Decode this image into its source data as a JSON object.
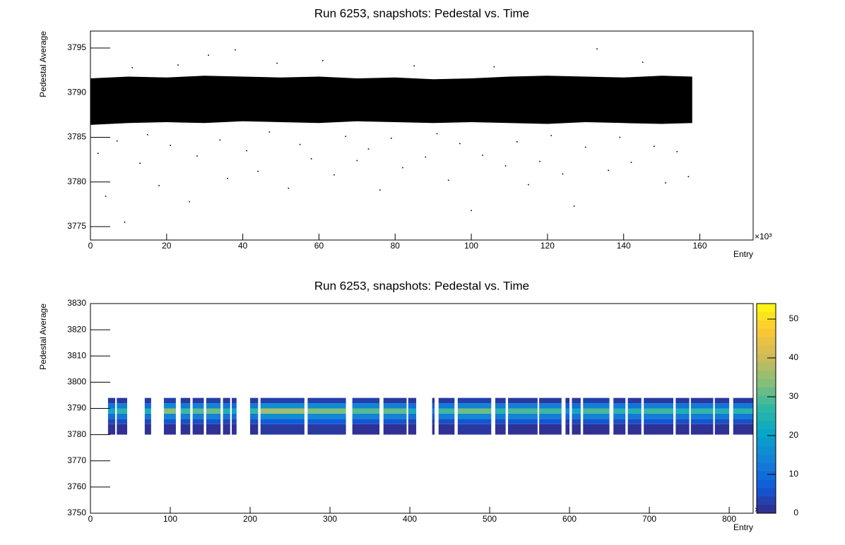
{
  "chart_data": [
    {
      "type": "scatter",
      "title": "Run 6253, snapshots: Pedestal vs. Time",
      "x_label": "Entry",
      "y_label": "Pedestal Average",
      "x_multiplier": "×10³",
      "xlim": [
        0,
        174
      ],
      "ylim": [
        3773.5,
        3796.9
      ],
      "xticks": [
        0,
        20,
        40,
        60,
        80,
        100,
        120,
        140,
        160
      ],
      "yticks": [
        3775,
        3780,
        3785,
        3790,
        3795
      ],
      "color": "#000000",
      "band": {
        "x": [
          0,
          10,
          20,
          30,
          40,
          50,
          60,
          70,
          80,
          90,
          100,
          110,
          120,
          130,
          140,
          150,
          158
        ],
        "lower": [
          3786.4,
          3786.6,
          3786.7,
          3786.6,
          3786.8,
          3786.7,
          3786.6,
          3786.8,
          3786.7,
          3786.6,
          3786.7,
          3786.6,
          3786.5,
          3786.7,
          3786.6,
          3786.5,
          3786.6
        ],
        "upper": [
          3791.6,
          3791.8,
          3791.7,
          3791.9,
          3791.8,
          3791.7,
          3791.8,
          3791.6,
          3791.7,
          3791.5,
          3791.6,
          3791.8,
          3791.9,
          3791.8,
          3791.7,
          3791.9,
          3791.8
        ]
      },
      "x": [
        2,
        4,
        7,
        9,
        11,
        13,
        15,
        18,
        21,
        23,
        26,
        28,
        31,
        34,
        36,
        38,
        41,
        44,
        47,
        49,
        52,
        55,
        58,
        61,
        64,
        67,
        70,
        73,
        76,
        79,
        82,
        85,
        88,
        91,
        94,
        97,
        100,
        103,
        106,
        109,
        112,
        115,
        118,
        121,
        124,
        127,
        130,
        133,
        136,
        139,
        142,
        145,
        148,
        151,
        154,
        157
      ],
      "y": [
        3783.2,
        3778.4,
        3784.6,
        3775.5,
        3792.8,
        3782.1,
        3785.3,
        3779.6,
        3784.1,
        3793.1,
        3777.8,
        3782.9,
        3794.2,
        3784.7,
        3780.4,
        3794.8,
        3783.5,
        3781.2,
        3785.6,
        3793.3,
        3779.3,
        3784.2,
        3782.6,
        3793.6,
        3780.8,
        3785.1,
        3782.4,
        3783.7,
        3779.1,
        3784.9,
        3781.6,
        3793.0,
        3782.8,
        3785.4,
        3780.2,
        3784.3,
        3776.8,
        3783.0,
        3792.9,
        3781.8,
        3784.5,
        3779.7,
        3782.3,
        3785.2,
        3780.9,
        3777.3,
        3783.9,
        3794.9,
        3781.3,
        3785.0,
        3782.2,
        3793.4,
        3784.0,
        3779.9,
        3783.4,
        3780.6
      ]
    },
    {
      "type": "heatmap",
      "title": "Run 6253, snapshots: Pedestal vs. Time",
      "x_label": "Entry",
      "y_label": "Pedestal Average",
      "x_multiplier": "×10³",
      "xlim": [
        0,
        830
      ],
      "ylim": [
        3750,
        3830
      ],
      "xticks": [
        0,
        100,
        200,
        300,
        400,
        500,
        600,
        700,
        800
      ],
      "yticks": [
        3750,
        3760,
        3770,
        3780,
        3790,
        3800,
        3810,
        3820,
        3830
      ],
      "zlim": [
        0,
        54
      ],
      "zticks": [
        0,
        10,
        20,
        30,
        40,
        50
      ],
      "palette": [
        "#352a87",
        "#0f5cdd",
        "#1481d6",
        "#06a4ca",
        "#2eb7a4",
        "#87bf77",
        "#d1bb59",
        "#fec832",
        "#f9fb0e"
      ],
      "y_bins": [
        3780,
        3784,
        3786,
        3788,
        3790,
        3792,
        3794
      ],
      "blocks": [
        {
          "x_range": [
            22,
            31
          ],
          "counts": [
            1,
            4,
            10,
            22,
            11,
            2
          ]
        },
        {
          "x_range": [
            33,
            46
          ],
          "counts": [
            1,
            5,
            12,
            26,
            13,
            2
          ]
        },
        {
          "x_range": [
            68,
            76
          ],
          "counts": [
            1,
            4,
            11,
            24,
            10,
            2
          ]
        },
        {
          "x_range": [
            92,
            107
          ],
          "counts": [
            1,
            6,
            14,
            34,
            15,
            3
          ]
        },
        {
          "x_range": [
            113,
            125
          ],
          "counts": [
            1,
            5,
            13,
            28,
            12,
            2
          ]
        },
        {
          "x_range": [
            128,
            142
          ],
          "counts": [
            1,
            5,
            13,
            30,
            13,
            2
          ]
        },
        {
          "x_range": [
            145,
            163
          ],
          "counts": [
            1,
            6,
            14,
            32,
            14,
            3
          ]
        },
        {
          "x_range": [
            166,
            175
          ],
          "counts": [
            1,
            4,
            11,
            25,
            11,
            2
          ]
        },
        {
          "x_range": [
            177,
            183
          ],
          "counts": [
            1,
            4,
            10,
            21,
            9,
            2
          ]
        },
        {
          "x_range": [
            200,
            210
          ],
          "counts": [
            1,
            5,
            12,
            27,
            12,
            2
          ]
        },
        {
          "x_range": [
            213,
            268
          ],
          "counts": [
            2,
            7,
            16,
            36,
            16,
            3
          ]
        },
        {
          "x_range": [
            272,
            320
          ],
          "counts": [
            2,
            7,
            15,
            33,
            15,
            3
          ]
        },
        {
          "x_range": [
            328,
            362
          ],
          "counts": [
            1,
            6,
            14,
            30,
            14,
            3
          ]
        },
        {
          "x_range": [
            367,
            396
          ],
          "counts": [
            1,
            6,
            14,
            31,
            13,
            2
          ]
        },
        {
          "x_range": [
            398,
            408
          ],
          "counts": [
            1,
            4,
            11,
            23,
            10,
            2
          ]
        },
        {
          "x_range": [
            428,
            431
          ],
          "counts": [
            1,
            2,
            6,
            12,
            6,
            1
          ]
        },
        {
          "x_range": [
            436,
            456
          ],
          "counts": [
            1,
            5,
            13,
            28,
            12,
            2
          ]
        },
        {
          "x_range": [
            460,
            502
          ],
          "counts": [
            2,
            6,
            15,
            32,
            14,
            3
          ]
        },
        {
          "x_range": [
            507,
            520
          ],
          "counts": [
            1,
            5,
            12,
            26,
            12,
            2
          ]
        },
        {
          "x_range": [
            523,
            560
          ],
          "counts": [
            1,
            6,
            14,
            29,
            13,
            2
          ]
        },
        {
          "x_range": [
            562,
            590
          ],
          "counts": [
            1,
            6,
            13,
            28,
            13,
            2
          ]
        },
        {
          "x_range": [
            595,
            600
          ],
          "counts": [
            1,
            3,
            8,
            16,
            7,
            1
          ]
        },
        {
          "x_range": [
            603,
            614
          ],
          "counts": [
            1,
            4,
            11,
            22,
            10,
            2
          ]
        },
        {
          "x_range": [
            617,
            650
          ],
          "counts": [
            1,
            6,
            14,
            29,
            13,
            3
          ]
        },
        {
          "x_range": [
            655,
            670
          ],
          "counts": [
            1,
            5,
            12,
            26,
            12,
            2
          ]
        },
        {
          "x_range": [
            673,
            690
          ],
          "counts": [
            1,
            5,
            12,
            25,
            11,
            2
          ]
        },
        {
          "x_range": [
            693,
            730
          ],
          "counts": [
            1,
            6,
            13,
            28,
            13,
            2
          ]
        },
        {
          "x_range": [
            733,
            750
          ],
          "counts": [
            1,
            5,
            12,
            24,
            11,
            2
          ]
        },
        {
          "x_range": [
            752,
            780
          ],
          "counts": [
            1,
            6,
            13,
            27,
            12,
            2
          ]
        },
        {
          "x_range": [
            782,
            800
          ],
          "counts": [
            1,
            5,
            12,
            25,
            11,
            2
          ]
        },
        {
          "x_range": [
            805,
            830
          ],
          "counts": [
            1,
            5,
            12,
            26,
            12,
            2
          ]
        }
      ]
    }
  ]
}
